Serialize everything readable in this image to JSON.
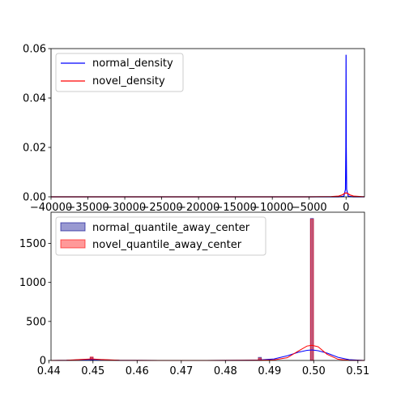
{
  "chart_data": [
    {
      "type": "line",
      "xlim": [
        -40000,
        2500
      ],
      "ylim": [
        0,
        0.06
      ],
      "xticks": [
        -40000,
        -35000,
        -30000,
        -25000,
        -20000,
        -15000,
        -10000,
        -5000,
        0
      ],
      "xtick_labels": [
        "−40000",
        "−35000",
        "−30000",
        "−25000",
        "−20000",
        "−15000",
        "−10000",
        "−5000",
        "0"
      ],
      "yticks": [
        0,
        0.02,
        0.04,
        0.06
      ],
      "ytick_labels": [
        "0.00",
        "0.02",
        "0.04",
        "0.06"
      ],
      "legend": "top-left",
      "series": [
        {
          "name": "normal_density",
          "color": "#0000ff",
          "x": [
            -40000,
            -1000,
            -300,
            -80,
            -30,
            -5,
            0,
            5,
            30,
            80,
            300,
            1000,
            2500
          ],
          "y": [
            0,
            0,
            0.0002,
            0.003,
            0.02,
            0.05,
            0.0575,
            0.05,
            0.02,
            0.003,
            0.0002,
            0,
            0
          ]
        },
        {
          "name": "novel_density",
          "color": "#ff0000",
          "x": [
            -40000,
            -5000,
            -2000,
            -1000,
            -500,
            -200,
            0,
            200,
            500,
            1000,
            2000,
            2500
          ],
          "y": [
            0,
            0,
            0.0001,
            0.0003,
            0.0008,
            0.0014,
            0.0016,
            0.0014,
            0.0008,
            0.0003,
            0.0001,
            0
          ]
        }
      ]
    },
    {
      "type": "bar",
      "xlim": [
        0.4405,
        0.5115
      ],
      "ylim": [
        0,
        1900
      ],
      "xticks": [
        0.44,
        0.45,
        0.46,
        0.47,
        0.48,
        0.49,
        0.5,
        0.51
      ],
      "xtick_labels": [
        "0.44",
        "0.45",
        "0.46",
        "0.47",
        "0.48",
        "0.49",
        "0.50",
        "0.51"
      ],
      "yticks": [
        0,
        500,
        1000,
        1500
      ],
      "ytick_labels": [
        "0",
        "500",
        "1000",
        "1500"
      ],
      "legend": "top-left",
      "bin_width": 0.0007,
      "series": [
        {
          "name": "normal_quantile_away_center",
          "color": "#00008b",
          "bins": [
            {
              "x": 0.4497,
              "count": 40
            },
            {
              "x": 0.4878,
              "count": 40
            },
            {
              "x": 0.4996,
              "count": 1820
            }
          ]
        },
        {
          "name": "novel_quantile_away_center",
          "color": "#ff0000",
          "bins": [
            {
              "x": 0.4497,
              "count": 45
            },
            {
              "x": 0.4878,
              "count": 30
            },
            {
              "x": 0.4996,
              "count": 1810
            }
          ]
        }
      ],
      "kde_lines": [
        {
          "series": "normal_quantile_away_center",
          "color": "#0000ff",
          "x": [
            0.4405,
            0.444,
            0.447,
            0.4497,
            0.452,
            0.456,
            0.465,
            0.475,
            0.484,
            0.4878,
            0.491,
            0.494,
            0.4965,
            0.4985,
            0.4996,
            0.501,
            0.503,
            0.5055,
            0.508,
            0.5115
          ],
          "y": [
            0,
            2,
            8,
            12,
            8,
            2,
            0,
            0,
            3,
            6,
            20,
            60,
            105,
            130,
            135,
            125,
            95,
            40,
            10,
            0
          ]
        },
        {
          "series": "novel_quantile_away_center",
          "color": "#ff0000",
          "x": [
            0.4405,
            0.444,
            0.447,
            0.4497,
            0.452,
            0.456,
            0.465,
            0.475,
            0.484,
            0.4878,
            0.491,
            0.494,
            0.4965,
            0.4985,
            0.4996,
            0.501,
            0.503,
            0.5055,
            0.508,
            0.5115
          ],
          "y": [
            0,
            3,
            12,
            20,
            12,
            3,
            0,
            0,
            2,
            4,
            8,
            35,
            120,
            185,
            195,
            175,
            80,
            15,
            2,
            0
          ]
        }
      ]
    }
  ]
}
